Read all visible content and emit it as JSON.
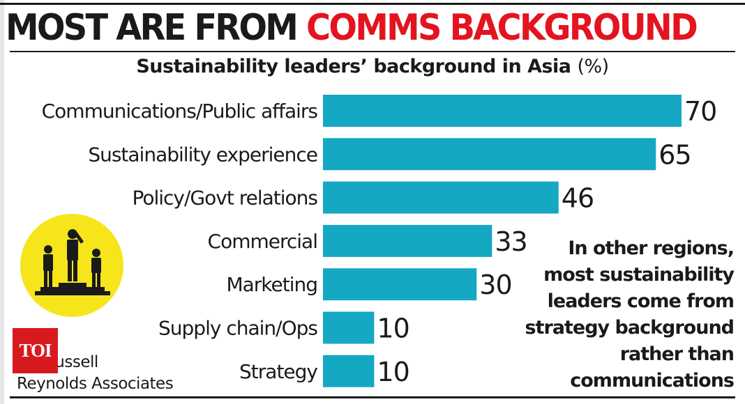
{
  "headline": {
    "part1": "MOST ARE FROM ",
    "part2": "COMMS BACKGROUND"
  },
  "subtitle": {
    "text": "Sustainability leaders’ background in Asia",
    "unit": "(%)"
  },
  "note": "In other regions,\nmost sustainability\nleaders come  from\nstrategy background\nrather than\ncommunications",
  "source": "ce: Russell\nReynolds Associates",
  "logo": "TOI",
  "icon": "podium-winners-icon",
  "colors": {
    "bar": "#15a8c2",
    "headline_red": "#e3141f",
    "logo_red": "#d71920",
    "icon_circle": "#f6e51b"
  },
  "chart_data": {
    "type": "bar",
    "orientation": "horizontal",
    "categories": [
      "Communications/Public affairs",
      "Sustainability experience",
      "Policy/Govt relations",
      "Commercial",
      "Marketing",
      "Supply chain/Ops",
      "Strategy"
    ],
    "values": [
      70,
      65,
      46,
      33,
      30,
      10,
      10
    ],
    "title": "Sustainability leaders’ background in Asia (%)",
    "xlim": [
      0,
      70
    ],
    "grid": false,
    "legend": "none"
  }
}
